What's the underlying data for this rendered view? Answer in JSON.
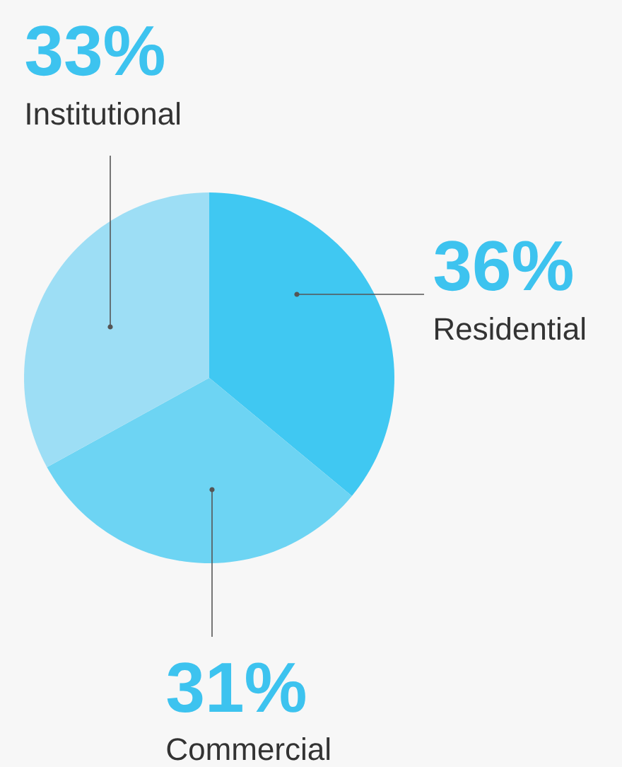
{
  "chart_data": {
    "type": "pie",
    "categories": [
      "Residential",
      "Commercial",
      "Institutional"
    ],
    "values": [
      36,
      31,
      33
    ],
    "colors": [
      "#40c8f2",
      "#6dd4f3",
      "#9ddef5"
    ],
    "value_labels": [
      "36%",
      "31%",
      "33%"
    ]
  }
}
